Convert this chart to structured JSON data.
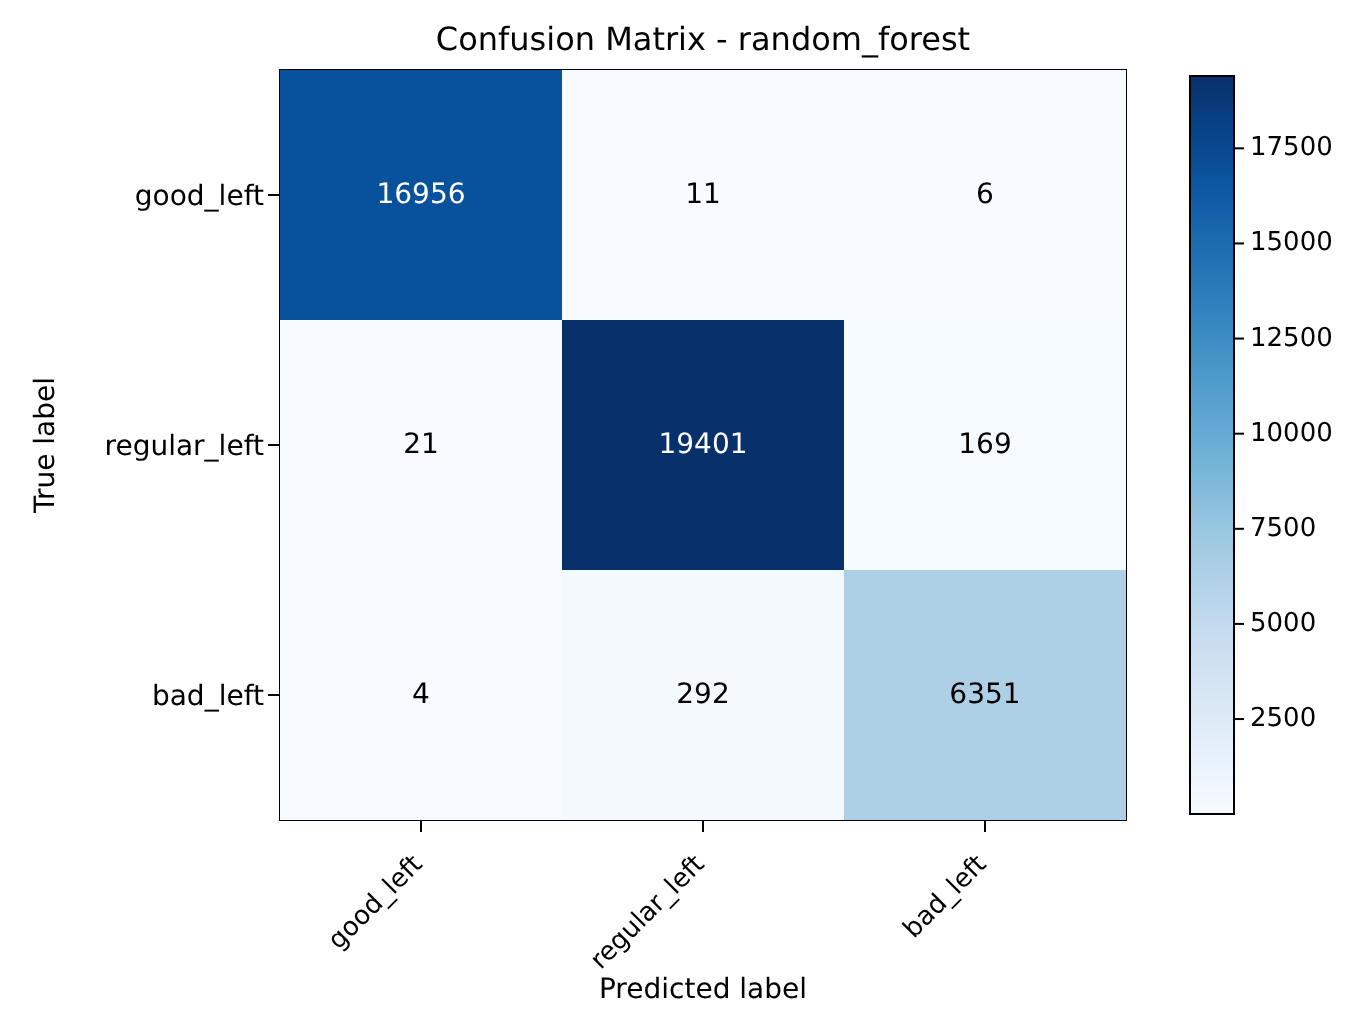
{
  "chart_data": {
    "type": "heatmap",
    "title": "Confusion Matrix - random_forest",
    "xlabel": "Predicted label",
    "ylabel": "True label",
    "categories": [
      "good_left",
      "regular_left",
      "bad_left"
    ],
    "y_categories": [
      "good_left",
      "regular_left",
      "bad_left"
    ],
    "cells": [
      [
        16956,
        11,
        6
      ],
      [
        21,
        19401,
        169
      ],
      [
        4,
        292,
        6351
      ]
    ],
    "clim": [
      4,
      19401
    ],
    "cticks": [
      2500,
      5000,
      7500,
      10000,
      12500,
      15000,
      17500
    ],
    "data_labels": true
  }
}
